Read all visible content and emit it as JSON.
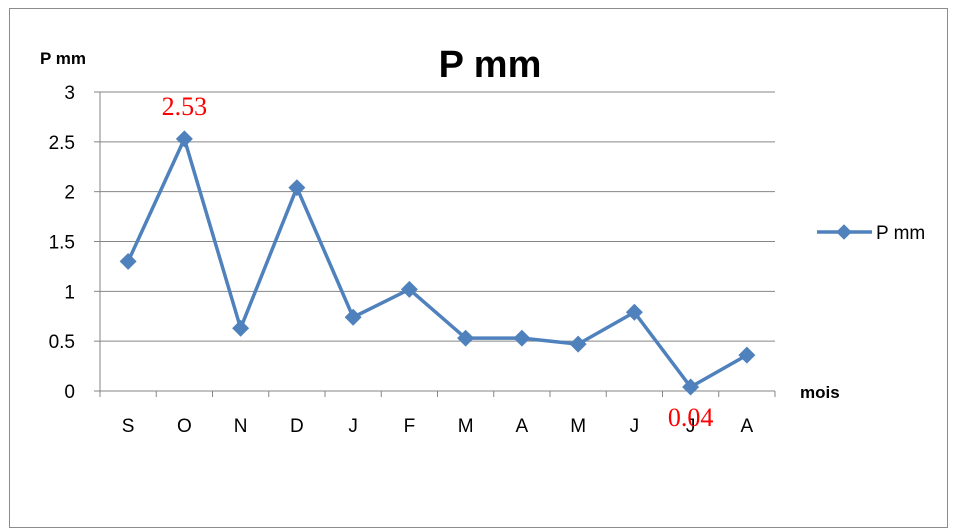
{
  "chart_data": {
    "type": "line",
    "title": "P mm",
    "ylabel": "P mm",
    "xlabel": "mois",
    "categories": [
      "S",
      "O",
      "N",
      "D",
      "J",
      "F",
      "M",
      "A",
      "M",
      "J",
      "J",
      "A"
    ],
    "series": [
      {
        "name": "P mm",
        "values": [
          1.3,
          2.53,
          0.63,
          2.04,
          0.74,
          1.02,
          0.53,
          0.53,
          0.47,
          0.79,
          0.04,
          0.36
        ]
      }
    ],
    "ylim": [
      0,
      3
    ],
    "yticks": [
      "0",
      "0.5",
      "1",
      "1.5",
      "2",
      "2.5",
      "3"
    ],
    "grid": true,
    "legend": "right",
    "data_labels": [
      {
        "index": 1,
        "text": "2.53"
      },
      {
        "index": 10,
        "text": "0.04"
      }
    ],
    "colors": {
      "series": "#4f81bd",
      "data_label": "#ff0000",
      "grid": "#868686"
    }
  }
}
